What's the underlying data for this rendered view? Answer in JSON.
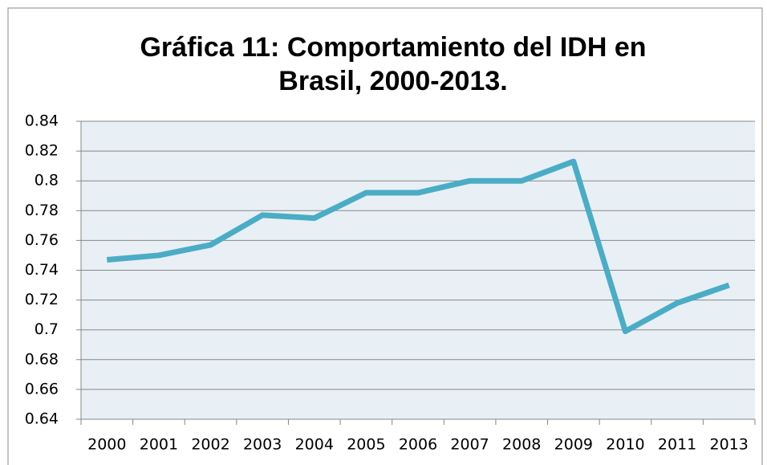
{
  "chart_data": {
    "type": "line",
    "title": "Gráfica 11: Comportamiento del IDH en Brasil, 2000-2013.",
    "categories": [
      "2000",
      "2001",
      "2002",
      "2003",
      "2004",
      "2005",
      "2006",
      "2007",
      "2008",
      "2009",
      "2010",
      "2011",
      "2013"
    ],
    "values": [
      0.747,
      0.75,
      0.757,
      0.777,
      0.775,
      0.792,
      0.792,
      0.8,
      0.8,
      0.813,
      0.699,
      0.718,
      0.73
    ],
    "color": "#4bacc6",
    "ylim": [
      0.64,
      0.84
    ],
    "yticks": [
      0.64,
      0.66,
      0.68,
      0.7,
      0.72,
      0.74,
      0.76,
      0.78,
      0.8,
      0.82,
      0.84
    ],
    "grid": true
  }
}
